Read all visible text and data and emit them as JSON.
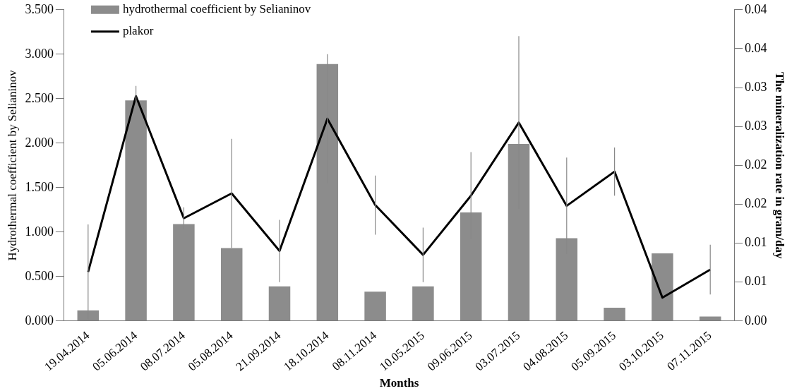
{
  "chart_data": {
    "type": "bar",
    "xlabel": "Months",
    "ylabel": "Hydrothermal coefficient by Selianinov",
    "y2label": "The mineralization rate in gram/day",
    "categories": [
      "19.04.2014",
      "05.06.2014",
      "08.07.2014",
      "05.08.2014",
      "21.09.2014",
      "18.10.2014",
      "08.11.2014",
      "10.05.2015",
      "09.06.2015",
      "03.07.2015",
      "04.08.2015",
      "05.09.2015",
      "03.10.2015",
      "07.11.2015"
    ],
    "series": [
      {
        "name": "hydrothermal coefficient by Selianinov",
        "color": "#8c8c8c",
        "values": [
          0.12,
          2.48,
          1.09,
          0.82,
          0.39,
          2.89,
          0.33,
          0.39,
          1.22,
          1.99,
          0.93,
          0.15,
          0.76,
          0.05
        ]
      },
      {
        "name": "plakor",
        "type": "line",
        "axis": "y2",
        "color": "#000000",
        "values": [
          0.0063,
          0.0289,
          0.0132,
          0.0164,
          0.009,
          0.026,
          0.0149,
          0.0085,
          0.0161,
          0.0255,
          0.0148,
          0.0192,
          0.003,
          0.0066
        ],
        "errors": [
          0.0061,
          0.0013,
          0.0014,
          0.007,
          0.004,
          0.0083,
          0.0038,
          0.0035,
          0.0056,
          0.0111,
          0.0062,
          0.0031,
          null,
          0.0032
        ]
      }
    ],
    "ylim": [
      0,
      3.5
    ],
    "yticks": [
      {
        "value": 0,
        "label": "0.000"
      },
      {
        "value": 0.5,
        "label": "0.500"
      },
      {
        "value": 1,
        "label": "1.000"
      },
      {
        "value": 1.5,
        "label": "1.500"
      },
      {
        "value": 2,
        "label": "2.000"
      },
      {
        "value": 2.5,
        "label": "2.500"
      },
      {
        "value": 3,
        "label": "3.000"
      },
      {
        "value": 3.5,
        "label": "3.500"
      }
    ],
    "y2lim": [
      0,
      0.04
    ],
    "y2ticks": [
      {
        "value": 0,
        "label": "0.00"
      },
      {
        "value": 0.005,
        "label": "0.01"
      },
      {
        "value": 0.01,
        "label": "0.01"
      },
      {
        "value": 0.015,
        "label": "0.02"
      },
      {
        "value": 0.02,
        "label": "0.02"
      },
      {
        "value": 0.025,
        "label": "0.03"
      },
      {
        "value": 0.03,
        "label": "0.03"
      },
      {
        "value": 0.035,
        "label": "0.04"
      },
      {
        "value": 0.04,
        "label": "0.04"
      }
    ],
    "grid": false,
    "legend": "top left",
    "marker": "none",
    "line_style": "solid"
  }
}
